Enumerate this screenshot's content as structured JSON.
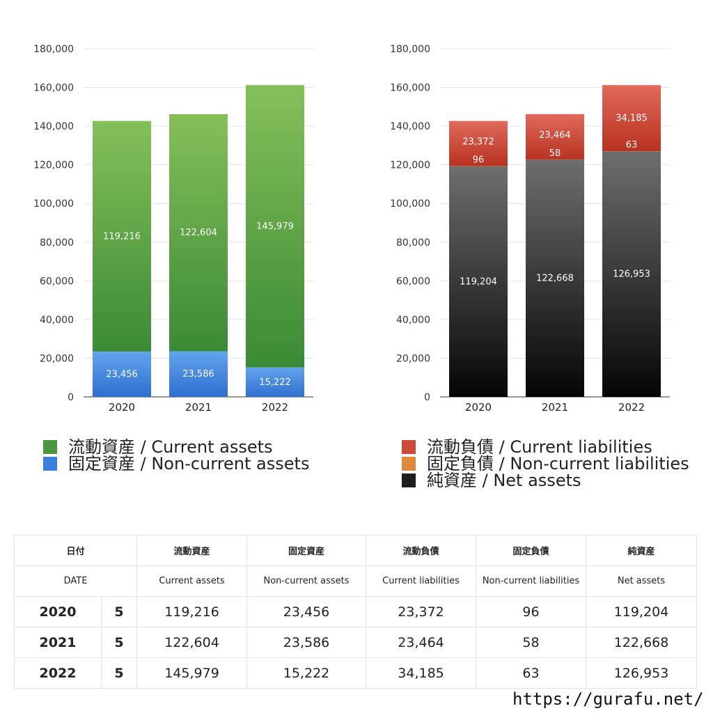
{
  "chart_data": [
    {
      "type": "bar",
      "stacked": true,
      "categories": [
        "2020",
        "2021",
        "2022"
      ],
      "ylim": [
        0,
        180000
      ],
      "yticks": [
        "0",
        "20,000",
        "40,000",
        "60,000",
        "80,000",
        "100,000",
        "120,000",
        "140,000",
        "160,000",
        "180,000"
      ],
      "grid": true,
      "legend_position": "bottom",
      "series": [
        {
          "name": "固定資産 / Non-current assets",
          "values": [
            23456,
            23586,
            15222
          ],
          "labels": [
            "23,456",
            "23,586",
            "15,222"
          ],
          "color_top": "#63a4ee",
          "color_bottom": "#2e6fd0"
        },
        {
          "name": "流動資産 / Current assets",
          "values": [
            119216,
            122604,
            145979
          ],
          "labels": [
            "119,216",
            "122,604",
            "145,979"
          ],
          "color_top": "#85c05a",
          "color_bottom": "#3a8a35"
        }
      ],
      "legend": [
        {
          "label": "流動資産 / Current assets",
          "color": "#4a9a3c"
        },
        {
          "label": "固定資産 / Non-current assets",
          "color": "#3a7fdc"
        }
      ]
    },
    {
      "type": "bar",
      "stacked": true,
      "categories": [
        "2020",
        "2021",
        "2022"
      ],
      "ylim": [
        0,
        180000
      ],
      "yticks": [
        "0",
        "20,000",
        "40,000",
        "60,000",
        "80,000",
        "100,000",
        "120,000",
        "140,000",
        "160,000",
        "180,000"
      ],
      "grid": true,
      "legend_position": "bottom",
      "series": [
        {
          "name": "純資産 / Net assets",
          "values": [
            119204,
            122668,
            126953
          ],
          "labels": [
            "119,204",
            "122,668",
            "126,953"
          ],
          "color_top": "#6e6e6e",
          "color_bottom": "#050505"
        },
        {
          "name": "固定負債 / Non-current liabilities",
          "values": [
            96,
            58,
            63
          ],
          "labels": [
            "96",
            "58",
            "63"
          ],
          "color_top": "#e08a3c",
          "color_bottom": "#c86a20"
        },
        {
          "name": "流動負債 / Current liabilities",
          "values": [
            23372,
            23464,
            34185
          ],
          "labels": [
            "23,372",
            "23,464",
            "34,185"
          ],
          "color_top": "#e06a5c",
          "color_bottom": "#b8321f"
        }
      ],
      "legend": [
        {
          "label": "流動負債 / Current liabilities",
          "color": "#cf4a38"
        },
        {
          "label": "固定負債 / Non-current liabilities",
          "color": "#e0893a"
        },
        {
          "label": "純資産 / Net assets",
          "color": "#1e1e1e"
        }
      ]
    }
  ],
  "table": {
    "headers_jp": [
      "日付",
      "流動資産",
      "固定資産",
      "流動負債",
      "固定負債",
      "純資産"
    ],
    "headers_en": [
      "DATE",
      "Current assets",
      "Non-current assets",
      "Current liabilities",
      "Non-current liabilities",
      "Net assets"
    ],
    "rows": [
      {
        "year": "2020",
        "month": "5",
        "values": [
          "119,216",
          "23,456",
          "23,372",
          "96",
          "119,204"
        ]
      },
      {
        "year": "2021",
        "month": "5",
        "values": [
          "122,604",
          "23,586",
          "23,464",
          "58",
          "122,668"
        ]
      },
      {
        "year": "2022",
        "month": "5",
        "values": [
          "145,979",
          "15,222",
          "34,185",
          "63",
          "126,953"
        ]
      }
    ]
  },
  "footer": {
    "url": "https://gurafu.net/"
  }
}
